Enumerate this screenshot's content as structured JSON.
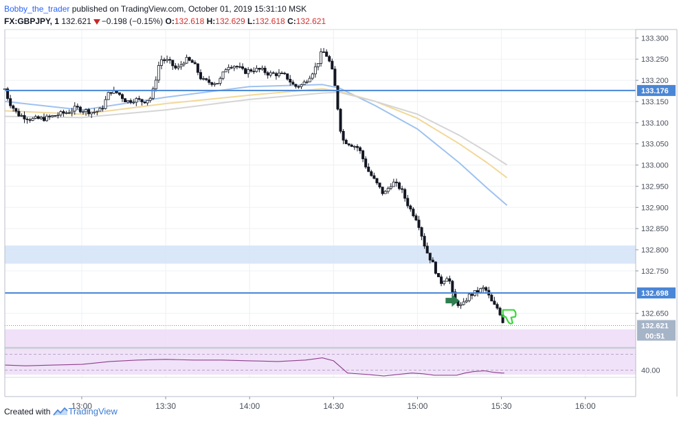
{
  "header": {
    "author": "Bobby_the_trader",
    "published_text": "published on TradingView.com, October 01, 2019 15:31:10 MSK",
    "symbol": "FX:GBPJPY, 1",
    "last": "132.621",
    "change": "−0.198 (−0.15%)",
    "o_label": "O:",
    "o_value": "132.618",
    "h_label": "H:",
    "h_value": "132.629",
    "l_label": "L:",
    "l_value": "132.618",
    "c_label": "C:",
    "c_value": "132.621"
  },
  "footer": {
    "created_with": "Created with",
    "brand": "TradingView"
  },
  "colors": {
    "candle_up": "#ffffff",
    "candle_down": "#131722",
    "ma_fast": "#9ec2ef",
    "ma_mid": "#f2d898",
    "ma_slow": "#d5d5d5",
    "hline": "#4a86d6",
    "zone_blue": "#d4e3f8",
    "zone_purple": "#eddcf8",
    "rsi_line": "#8e3b8e",
    "rsi_band": "#f0e2f8",
    "arrow": "#2e7d4f",
    "thumb": "#3bd63b"
  },
  "chart_data": {
    "type": "candlestick",
    "ylim": [
      132.57,
      133.32
    ],
    "y_ticks": [
      "133.300",
      "133.250",
      "133.200",
      "133.150",
      "133.100",
      "133.050",
      "133.000",
      "132.950",
      "132.900",
      "132.850",
      "132.800",
      "132.750",
      "132.650"
    ],
    "x_ticks": [
      "13:00",
      "13:30",
      "14:00",
      "14:30",
      "15:00",
      "15:30",
      "16:00"
    ],
    "x_tick_minutes": [
      780,
      810,
      840,
      870,
      900,
      930,
      960
    ],
    "x_range_minutes": [
      752.5,
      978
    ],
    "horizontal_lines": [
      {
        "value": 133.176,
        "label": "133.176"
      },
      {
        "value": 132.698,
        "label": "132.698"
      }
    ],
    "zones": [
      {
        "from": 132.767,
        "to": 132.81,
        "color": "blue"
      },
      {
        "from": 132.549,
        "to": 132.612,
        "color": "purple"
      }
    ],
    "current_price": {
      "value": 132.621,
      "label": "132.621",
      "countdown": "00:51"
    },
    "close_path": [
      [
        752.5,
        133.18
      ],
      [
        754,
        133.15
      ],
      [
        757,
        133.12
      ],
      [
        762,
        133.108
      ],
      [
        767,
        133.11
      ],
      [
        772,
        133.12
      ],
      [
        775,
        133.125
      ],
      [
        778,
        133.135
      ],
      [
        780,
        133.13
      ],
      [
        784,
        133.125
      ],
      [
        787,
        133.13
      ],
      [
        790,
        133.175
      ],
      [
        793,
        133.17
      ],
      [
        796,
        133.15
      ],
      [
        799,
        133.155
      ],
      [
        802,
        133.15
      ],
      [
        805,
        133.16
      ],
      [
        808,
        133.25
      ],
      [
        811,
        133.245
      ],
      [
        814,
        133.225
      ],
      [
        817,
        133.25
      ],
      [
        820,
        133.24
      ],
      [
        823,
        133.2
      ],
      [
        826,
        133.195
      ],
      [
        829,
        133.195
      ],
      [
        832,
        133.235
      ],
      [
        835,
        133.235
      ],
      [
        838,
        133.22
      ],
      [
        841,
        133.225
      ],
      [
        844,
        133.225
      ],
      [
        847,
        133.215
      ],
      [
        850,
        133.215
      ],
      [
        853,
        133.21
      ],
      [
        856,
        133.185
      ],
      [
        859,
        133.19
      ],
      [
        862,
        133.215
      ],
      [
        864,
        133.235
      ],
      [
        866,
        133.27
      ],
      [
        868,
        133.255
      ],
      [
        870,
        133.21
      ],
      [
        873,
        133.06
      ],
      [
        876,
        133.05
      ],
      [
        879,
        133.04
      ],
      [
        882,
        132.99
      ],
      [
        885,
        132.96
      ],
      [
        888,
        132.93
      ],
      [
        891,
        132.96
      ],
      [
        894,
        132.945
      ],
      [
        897,
        132.9
      ],
      [
        900,
        132.87
      ],
      [
        903,
        132.8
      ],
      [
        906,
        132.76
      ],
      [
        908,
        132.72
      ],
      [
        911,
        132.74
      ],
      [
        913,
        132.68
      ],
      [
        916,
        132.665
      ],
      [
        918,
        132.69
      ],
      [
        921,
        132.7
      ],
      [
        924,
        132.71
      ],
      [
        927,
        132.67
      ],
      [
        929,
        132.66
      ],
      [
        931,
        132.621
      ]
    ],
    "moving_averages": [
      {
        "name": "MA fast",
        "points": [
          [
            752.5,
            133.15
          ],
          [
            780,
            133.13
          ],
          [
            810,
            133.16
          ],
          [
            840,
            133.185
          ],
          [
            866,
            133.19
          ],
          [
            872,
            133.182
          ],
          [
            885,
            133.14
          ],
          [
            900,
            133.085
          ],
          [
            915,
            133.005
          ],
          [
            925,
            132.945
          ],
          [
            932,
            132.905
          ]
        ]
      },
      {
        "name": "MA mid",
        "points": [
          [
            752.5,
            133.128
          ],
          [
            780,
            133.12
          ],
          [
            810,
            133.145
          ],
          [
            840,
            133.165
          ],
          [
            866,
            133.18
          ],
          [
            872,
            133.174
          ],
          [
            885,
            133.15
          ],
          [
            900,
            133.11
          ],
          [
            915,
            133.05
          ],
          [
            925,
            133.005
          ],
          [
            932,
            132.97
          ]
        ]
      },
      {
        "name": "MA slow",
        "points": [
          [
            752.5,
            133.115
          ],
          [
            780,
            133.112
          ],
          [
            810,
            133.13
          ],
          [
            840,
            133.155
          ],
          [
            866,
            133.17
          ],
          [
            872,
            133.172
          ],
          [
            885,
            133.15
          ],
          [
            900,
            133.12
          ],
          [
            915,
            133.07
          ],
          [
            925,
            133.03
          ],
          [
            932,
            133.0
          ]
        ]
      }
    ],
    "rsi": {
      "label": "40.00",
      "level": 40,
      "range": [
        30,
        70
      ],
      "values": [
        [
          752.5,
          47
        ],
        [
          760,
          46
        ],
        [
          770,
          47
        ],
        [
          780,
          48
        ],
        [
          790,
          52
        ],
        [
          800,
          54
        ],
        [
          810,
          55
        ],
        [
          820,
          54
        ],
        [
          830,
          54
        ],
        [
          840,
          53
        ],
        [
          850,
          52
        ],
        [
          860,
          54
        ],
        [
          866,
          57
        ],
        [
          870,
          53
        ],
        [
          875,
          36
        ],
        [
          882,
          34
        ],
        [
          888,
          32
        ],
        [
          893,
          34
        ],
        [
          898,
          36
        ],
        [
          902,
          35
        ],
        [
          906,
          33
        ],
        [
          910,
          33
        ],
        [
          914,
          33
        ],
        [
          917,
          36
        ],
        [
          920,
          38
        ],
        [
          924,
          39
        ],
        [
          927,
          37
        ],
        [
          930,
          36
        ],
        [
          931,
          36
        ]
      ]
    }
  }
}
